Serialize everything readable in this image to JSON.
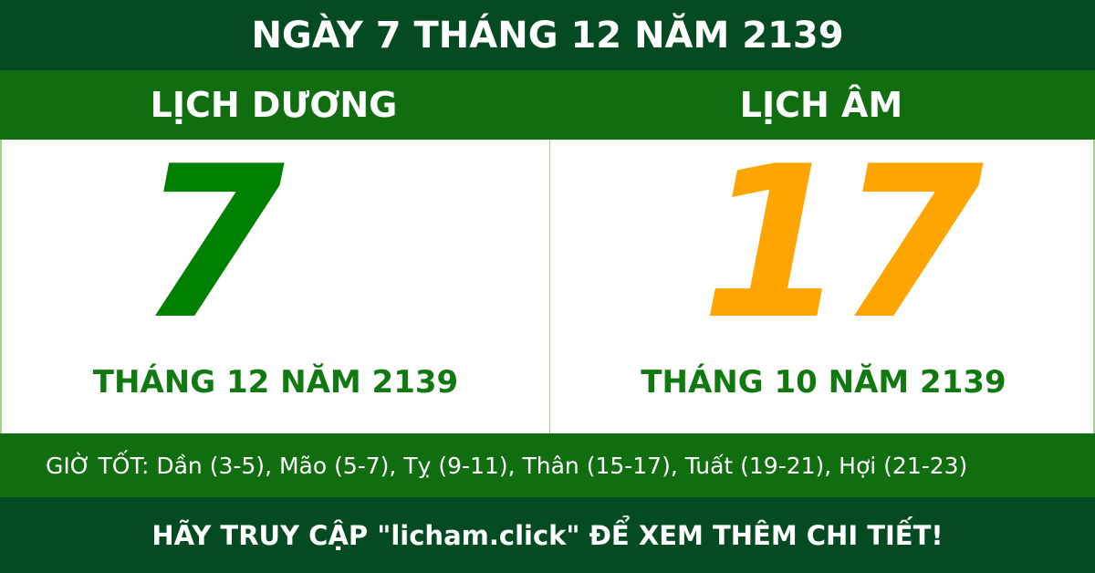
{
  "title": "NGÀY 7 THÁNG 12 NĂM 2139",
  "solar": {
    "label": "LỊCH DƯƠNG",
    "day": "7",
    "month_year": "THÁNG 12 NĂM 2139",
    "color": "#008000"
  },
  "lunar": {
    "label": "LỊCH ÂM",
    "day": "17",
    "month_year": "THÁNG 10 NĂM 2139",
    "color": "#ffa500"
  },
  "good_hours": "GIỜ TỐT: Dần (3-5), Mão (5-7), Tỵ (9-11), Thân (15-17), Tuất (19-21), Hợi (21-23)",
  "footer": "HÃY TRUY CẬP \"licham.click\" ĐỂ XEM THÊM CHI TIẾT!"
}
